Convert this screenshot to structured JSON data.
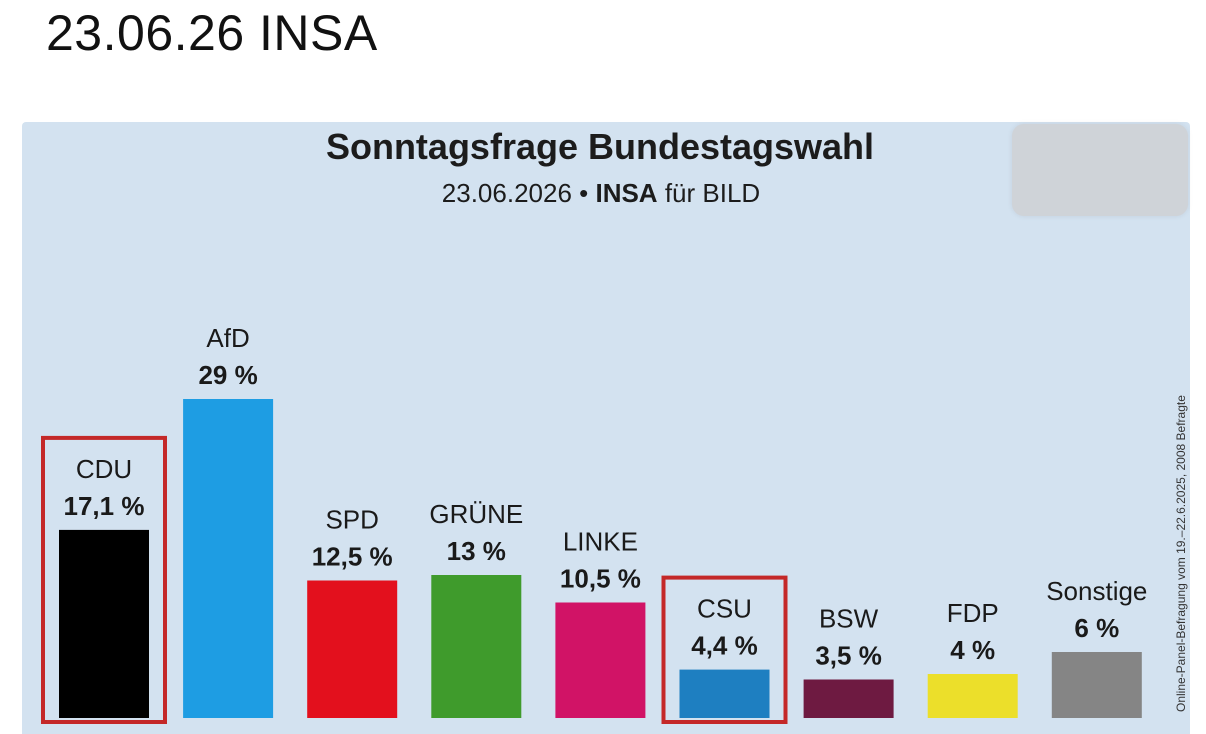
{
  "heading": "23.06.26 INSA",
  "chart_data": {
    "type": "bar",
    "title": "Sonntagsfrage Bundestagswahl",
    "subtitle_date": "23.06.2026 •",
    "subtitle_pollster": "INSA",
    "subtitle_client": "für BILD",
    "side_note": "Online-Panel-Befragung vom 19.–22.6.2025, 2008 Befragte",
    "categories": [
      "CDU",
      "AfD",
      "SPD",
      "GRÜNE",
      "LINKE",
      "CSU",
      "BSW",
      "FDP",
      "Sonstige"
    ],
    "values": [
      17.1,
      29,
      12.5,
      13,
      10.5,
      4.4,
      3.5,
      4,
      6
    ],
    "value_labels": [
      "17,1 %",
      "29 %",
      "12,5 %",
      "13 %",
      "10,5 %",
      "4,4 %",
      "3,5 %",
      "4 %",
      "6 %"
    ],
    "colors": [
      "#000000",
      "#1e9de3",
      "#e3101d",
      "#3f9b2c",
      "#d11366",
      "#1e7fc1",
      "#6e1a41",
      "#ecdf2a",
      "#858585"
    ],
    "highlighted": [
      "CDU",
      "CSU"
    ],
    "highlight_color": "#c42828",
    "xlabel": "",
    "ylabel": ""
  }
}
